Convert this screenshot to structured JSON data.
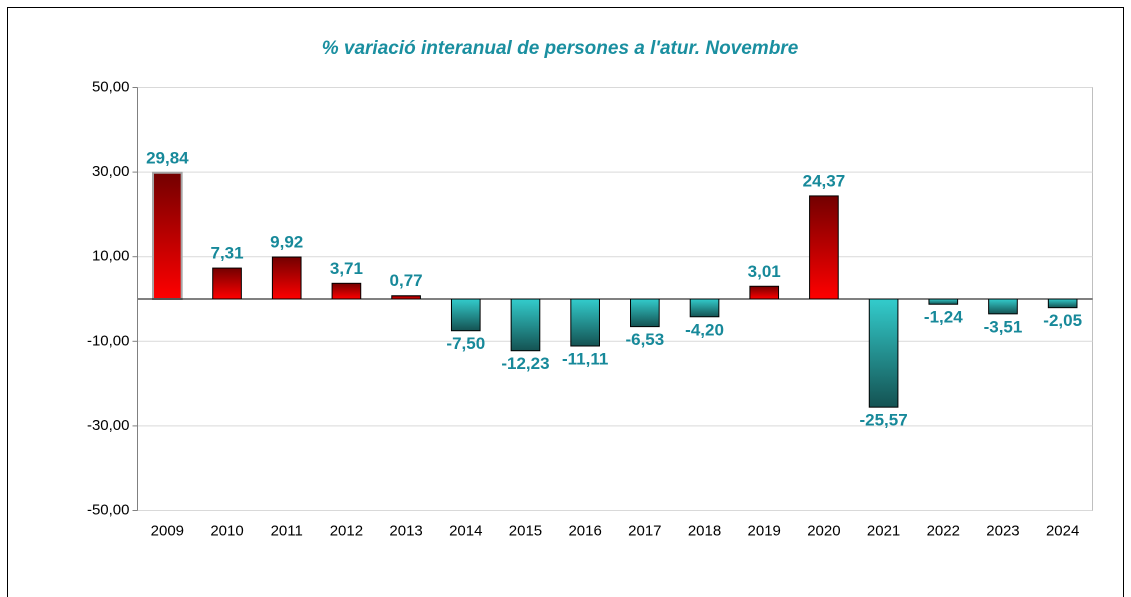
{
  "chart_data": {
    "type": "bar",
    "title": "% variació interanual de persones a l'atur. Novembre",
    "categories": [
      "2009",
      "2010",
      "2011",
      "2012",
      "2013",
      "2014",
      "2015",
      "2016",
      "2017",
      "2018",
      "2019",
      "2020",
      "2021",
      "2022",
      "2023",
      "2024"
    ],
    "values": [
      29.84,
      7.31,
      9.92,
      3.71,
      0.77,
      -7.5,
      -12.23,
      -11.11,
      -6.53,
      -4.2,
      3.01,
      24.37,
      -25.57,
      -1.24,
      -3.51,
      -2.05
    ],
    "value_labels": [
      "29,84",
      "7,31",
      "9,92",
      "3,71",
      "0,77",
      "-7,50",
      "-12,23",
      "-11,11",
      "-6,53",
      "-4,20",
      "3,01",
      "24,37",
      "-25,57",
      "-1,24",
      "-3,51",
      "-2,05"
    ],
    "positive_color": "#ff0000",
    "negative_color": "#33cccc",
    "ylim": [
      -50,
      50
    ],
    "yticks": [
      {
        "value": -50,
        "label": "-50,00"
      },
      {
        "value": -30,
        "label": "-30,00"
      },
      {
        "value": -10,
        "label": "-10,00"
      },
      {
        "value": 10,
        "label": "10,00"
      },
      {
        "value": 30,
        "label": "30,00"
      },
      {
        "value": 50,
        "label": "50,00"
      }
    ],
    "grid": true
  }
}
